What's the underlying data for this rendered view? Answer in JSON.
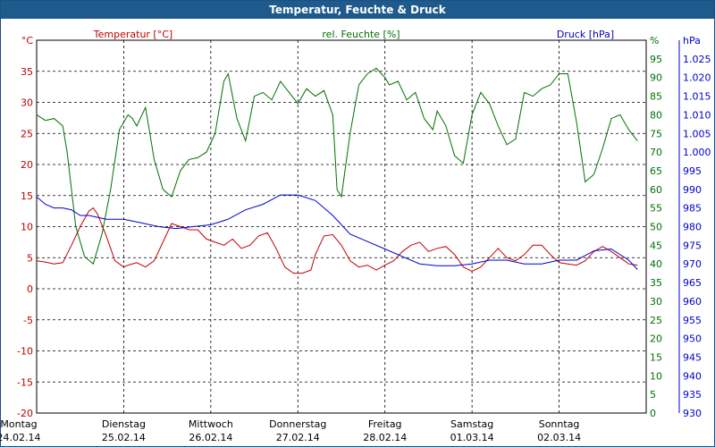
{
  "window": {
    "title": "Temperatur, Feuchte & Druck"
  },
  "colors": {
    "temperature": "#c00000",
    "humidity": "#007000",
    "pressure": "#0000cc",
    "grid": "#000000",
    "title_bar": "#1e5a8c"
  },
  "chart_data": {
    "type": "line",
    "title": "Temperatur, Feuchte & Druck",
    "grid": true,
    "x_domain": [
      0,
      7
    ],
    "x_ticks": [
      {
        "pos": 0,
        "day": "Montag",
        "date": "24.02.14"
      },
      {
        "pos": 1,
        "day": "Dienstag",
        "date": "25.02.14"
      },
      {
        "pos": 2,
        "day": "Mittwoch",
        "date": "26.02.14"
      },
      {
        "pos": 3,
        "day": "Donnerstag",
        "date": "27.02.14"
      },
      {
        "pos": 4,
        "day": "Freitag",
        "date": "28.02.14"
      },
      {
        "pos": 5,
        "day": "Samstag",
        "date": "01.03.14"
      },
      {
        "pos": 6,
        "day": "Sonntag",
        "date": "02.03.14"
      }
    ],
    "axes": {
      "temperature": {
        "label": "Temperatur [°C]",
        "unit": "°C",
        "ylim": [
          -20,
          40
        ],
        "ticks": [
          "35",
          "30",
          "25",
          "20",
          "15",
          "10",
          "5",
          "0",
          "-5",
          "-10",
          "-15",
          "-20"
        ]
      },
      "humidity": {
        "label": "rel. Feuchte [%]",
        "unit": "%",
        "ylim": [
          0,
          100
        ],
        "ticks": [
          "95",
          "90",
          "85",
          "80",
          "75",
          "70",
          "65",
          "60",
          "55",
          "50",
          "45",
          "40",
          "35",
          "30",
          "25",
          "20",
          "15",
          "10",
          "5",
          "0"
        ]
      },
      "pressure": {
        "label": "Druck [hPa]",
        "unit": "hPa",
        "ylim": [
          930,
          1030
        ],
        "ticks": [
          "1.025",
          "1.020",
          "1.015",
          "1.010",
          "1.005",
          "1.000",
          "995",
          "990",
          "985",
          "980",
          "975",
          "970",
          "965",
          "960",
          "955",
          "950",
          "945",
          "940",
          "935",
          "930"
        ]
      }
    },
    "series": [
      {
        "name": "Temperatur [°C]",
        "axis": "temperature",
        "x": [
          0,
          0.1,
          0.2,
          0.3,
          0.4,
          0.5,
          0.6,
          0.65,
          0.7,
          0.8,
          0.9,
          1.0,
          1.05,
          1.15,
          1.25,
          1.35,
          1.45,
          1.55,
          1.65,
          1.75,
          1.85,
          1.95,
          2.05,
          2.15,
          2.25,
          2.35,
          2.45,
          2.55,
          2.65,
          2.75,
          2.85,
          2.95,
          3.05,
          3.15,
          3.2,
          3.3,
          3.4,
          3.5,
          3.6,
          3.7,
          3.8,
          3.9,
          4.0,
          4.1,
          4.2,
          4.3,
          4.4,
          4.5,
          4.6,
          4.7,
          4.8,
          4.9,
          5.0,
          5.1,
          5.2,
          5.3,
          5.4,
          5.5,
          5.6,
          5.7,
          5.8,
          5.9,
          6.0,
          6.1,
          6.2,
          6.3,
          6.4,
          6.5,
          6.6,
          6.7,
          6.8,
          6.9
        ],
        "values": [
          4.5,
          4.3,
          4.0,
          4.2,
          7,
          10,
          12.5,
          13,
          12,
          8.5,
          4.5,
          3.5,
          3.8,
          4.2,
          3.5,
          4.5,
          7.5,
          10.5,
          10,
          9.5,
          9.5,
          8,
          7.5,
          7,
          8,
          6.5,
          7,
          8.5,
          9,
          6.5,
          3.5,
          2.5,
          2.5,
          3,
          5.5,
          8.5,
          8.7,
          7,
          4.5,
          3.5,
          3.8,
          3,
          3.8,
          4.5,
          6,
          7,
          7.5,
          6,
          6.5,
          6.8,
          5.5,
          3.5,
          2.8,
          3.5,
          5,
          6.5,
          5,
          4.5,
          5.5,
          7,
          7,
          5.5,
          4.2,
          4,
          3.8,
          4.5,
          6,
          6.8,
          6,
          5,
          4,
          3.8
        ]
      },
      {
        "name": "rel. Feuchte [%]",
        "axis": "humidity",
        "x": [
          0,
          0.1,
          0.2,
          0.3,
          0.35,
          0.45,
          0.55,
          0.65,
          0.75,
          0.85,
          0.95,
          1.05,
          1.1,
          1.15,
          1.25,
          1.35,
          1.45,
          1.55,
          1.65,
          1.75,
          1.85,
          1.95,
          2.05,
          2.15,
          2.2,
          2.3,
          2.4,
          2.5,
          2.6,
          2.7,
          2.8,
          2.9,
          3.0,
          3.1,
          3.2,
          3.3,
          3.4,
          3.45,
          3.5,
          3.6,
          3.7,
          3.8,
          3.9,
          4.0,
          4.05,
          4.15,
          4.25,
          4.35,
          4.45,
          4.55,
          4.6,
          4.7,
          4.8,
          4.9,
          5.0,
          5.1,
          5.2,
          5.3,
          5.4,
          5.5,
          5.6,
          5.7,
          5.8,
          5.9,
          6.0,
          6.1,
          6.2,
          6.3,
          6.4,
          6.5,
          6.6,
          6.7,
          6.8,
          6.9
        ],
        "values": [
          80,
          78.5,
          79,
          77,
          70,
          50,
          42,
          40,
          48,
          60,
          76,
          80,
          79,
          77,
          82,
          68,
          60,
          58,
          65,
          68,
          68.5,
          70,
          75,
          89,
          91,
          79,
          73,
          85,
          86,
          84,
          89,
          86,
          83,
          87,
          85,
          86.5,
          80,
          60,
          58,
          75,
          88,
          91,
          92.5,
          90,
          88,
          89,
          84,
          86,
          79,
          76,
          81,
          77,
          69,
          67,
          80,
          86,
          83,
          77,
          72,
          73.5,
          86,
          85,
          87,
          88,
          91,
          91,
          78,
          62,
          64,
          71,
          79,
          80,
          76,
          73
        ]
      },
      {
        "name": "Druck [hPa]",
        "axis": "pressure",
        "x": [
          0,
          0.1,
          0.2,
          0.3,
          0.4,
          0.5,
          0.6,
          0.7,
          0.8,
          0.9,
          1.0,
          1.2,
          1.4,
          1.6,
          1.8,
          2.0,
          2.2,
          2.4,
          2.6,
          2.8,
          3.0,
          3.2,
          3.4,
          3.6,
          3.8,
          4.0,
          4.2,
          4.4,
          4.6,
          4.8,
          5.0,
          5.2,
          5.4,
          5.6,
          5.8,
          6.0,
          6.2,
          6.4,
          6.6,
          6.8,
          6.9
        ],
        "values": [
          988,
          986,
          985,
          985,
          984.5,
          983,
          983,
          982.5,
          982,
          982,
          982,
          981,
          980,
          979.5,
          980,
          980.5,
          982,
          984.5,
          986,
          988.5,
          988.5,
          987,
          983,
          978,
          976,
          974,
          972,
          970,
          969.5,
          969.5,
          970,
          971,
          971,
          970,
          970,
          971,
          971,
          973.5,
          974,
          971,
          968.5
        ]
      }
    ]
  }
}
